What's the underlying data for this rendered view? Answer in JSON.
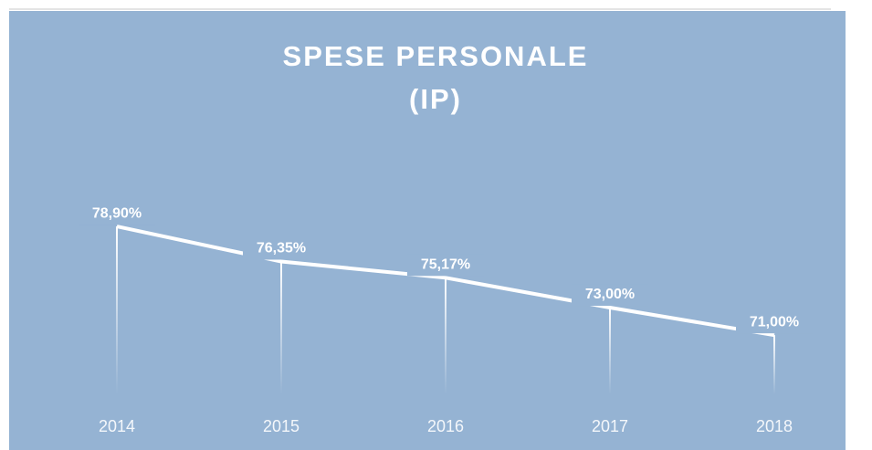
{
  "chart_data": {
    "type": "line",
    "title": "SPESE PERSONALE (IP)",
    "categories": [
      "2014",
      "2015",
      "2016",
      "2017",
      "2018"
    ],
    "values": [
      78.9,
      76.35,
      75.17,
      73.0,
      71.0
    ],
    "value_labels": [
      "78,90%",
      "76,35%",
      "75,17%",
      "73,00%",
      "71,00%"
    ],
    "color": "#ffffff",
    "ylim": [
      66.7,
      82.75
    ]
  }
}
